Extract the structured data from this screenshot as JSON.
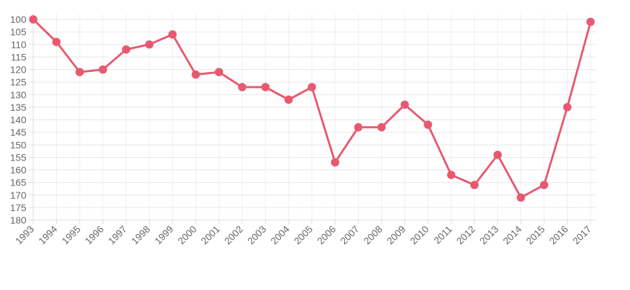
{
  "chart_data": {
    "type": "line",
    "x": [
      "1993",
      "1994",
      "1995",
      "1996",
      "1997",
      "1998",
      "1999",
      "2000",
      "2001",
      "2002",
      "2003",
      "2004",
      "2005",
      "2006",
      "2007",
      "2008",
      "2009",
      "2010",
      "2011",
      "2012",
      "2013",
      "2014",
      "2015",
      "2016",
      "2017"
    ],
    "series": [
      {
        "values": [
          100,
          109,
          121,
          120,
          112,
          110,
          106,
          122,
          121,
          127,
          127,
          132,
          127,
          157,
          143,
          143,
          134,
          142,
          162,
          166,
          154,
          171,
          166,
          135,
          101
        ],
        "color": "#e8596f"
      }
    ],
    "yticks": [
      "100",
      "105",
      "110",
      "115",
      "120",
      "125",
      "130",
      "135",
      "140",
      "145",
      "150",
      "155",
      "160",
      "165",
      "170",
      "175",
      "180"
    ],
    "ylim": [
      100,
      180
    ],
    "y_reversed": true,
    "grid": true,
    "legend": "none"
  }
}
